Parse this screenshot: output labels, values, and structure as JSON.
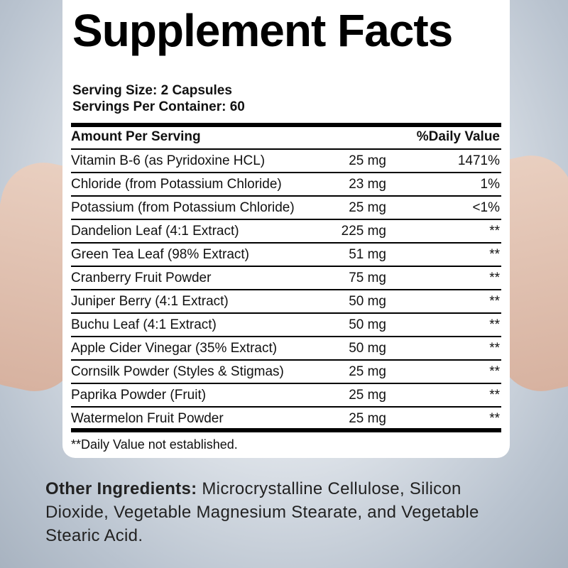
{
  "title": "Supplement Facts",
  "serving_size": "Serving Size: 2 Capsules",
  "servings_per_container": "Servings Per Container: 60",
  "header": {
    "amount": "Amount Per Serving",
    "dv": "%Daily Value"
  },
  "rows": [
    {
      "name": "Vitamin B-6 (as Pyridoxine HCL)",
      "amount": "25 mg",
      "dv": "1471%"
    },
    {
      "name": "Chloride (from Potassium Chloride)",
      "amount": "23 mg",
      "dv": "1%"
    },
    {
      "name": "Potassium (from Potassium Chloride)",
      "amount": "25 mg",
      "dv": "<1%"
    },
    {
      "name": "Dandelion Leaf (4:1 Extract)",
      "amount": "225 mg",
      "dv": "**"
    },
    {
      "name": "Green Tea Leaf (98% Extract)",
      "amount": "51 mg",
      "dv": "**"
    },
    {
      "name": "Cranberry Fruit Powder",
      "amount": "75 mg",
      "dv": "**"
    },
    {
      "name": "Juniper Berry (4:1 Extract)",
      "amount": "50 mg",
      "dv": "**"
    },
    {
      "name": "Buchu Leaf (4:1 Extract)",
      "amount": "50 mg",
      "dv": "**"
    },
    {
      "name": "Apple Cider Vinegar (35% Extract)",
      "amount": "50 mg",
      "dv": "**"
    },
    {
      "name": "Cornsilk Powder (Styles & Stigmas)",
      "amount": "25 mg",
      "dv": "**"
    },
    {
      "name": "Paprika Powder (Fruit)",
      "amount": "25 mg",
      "dv": "**"
    },
    {
      "name": "Watermelon Fruit Powder",
      "amount": "25 mg",
      "dv": "**"
    }
  ],
  "footnote": "**Daily Value not established.",
  "other_ingredients": {
    "label": "Other Ingredients:",
    "text": " Microcrystalline Cellulose, Silicon Dioxide, Vegetable Magnesium Stearate, and Vegetable Stearic Acid."
  }
}
